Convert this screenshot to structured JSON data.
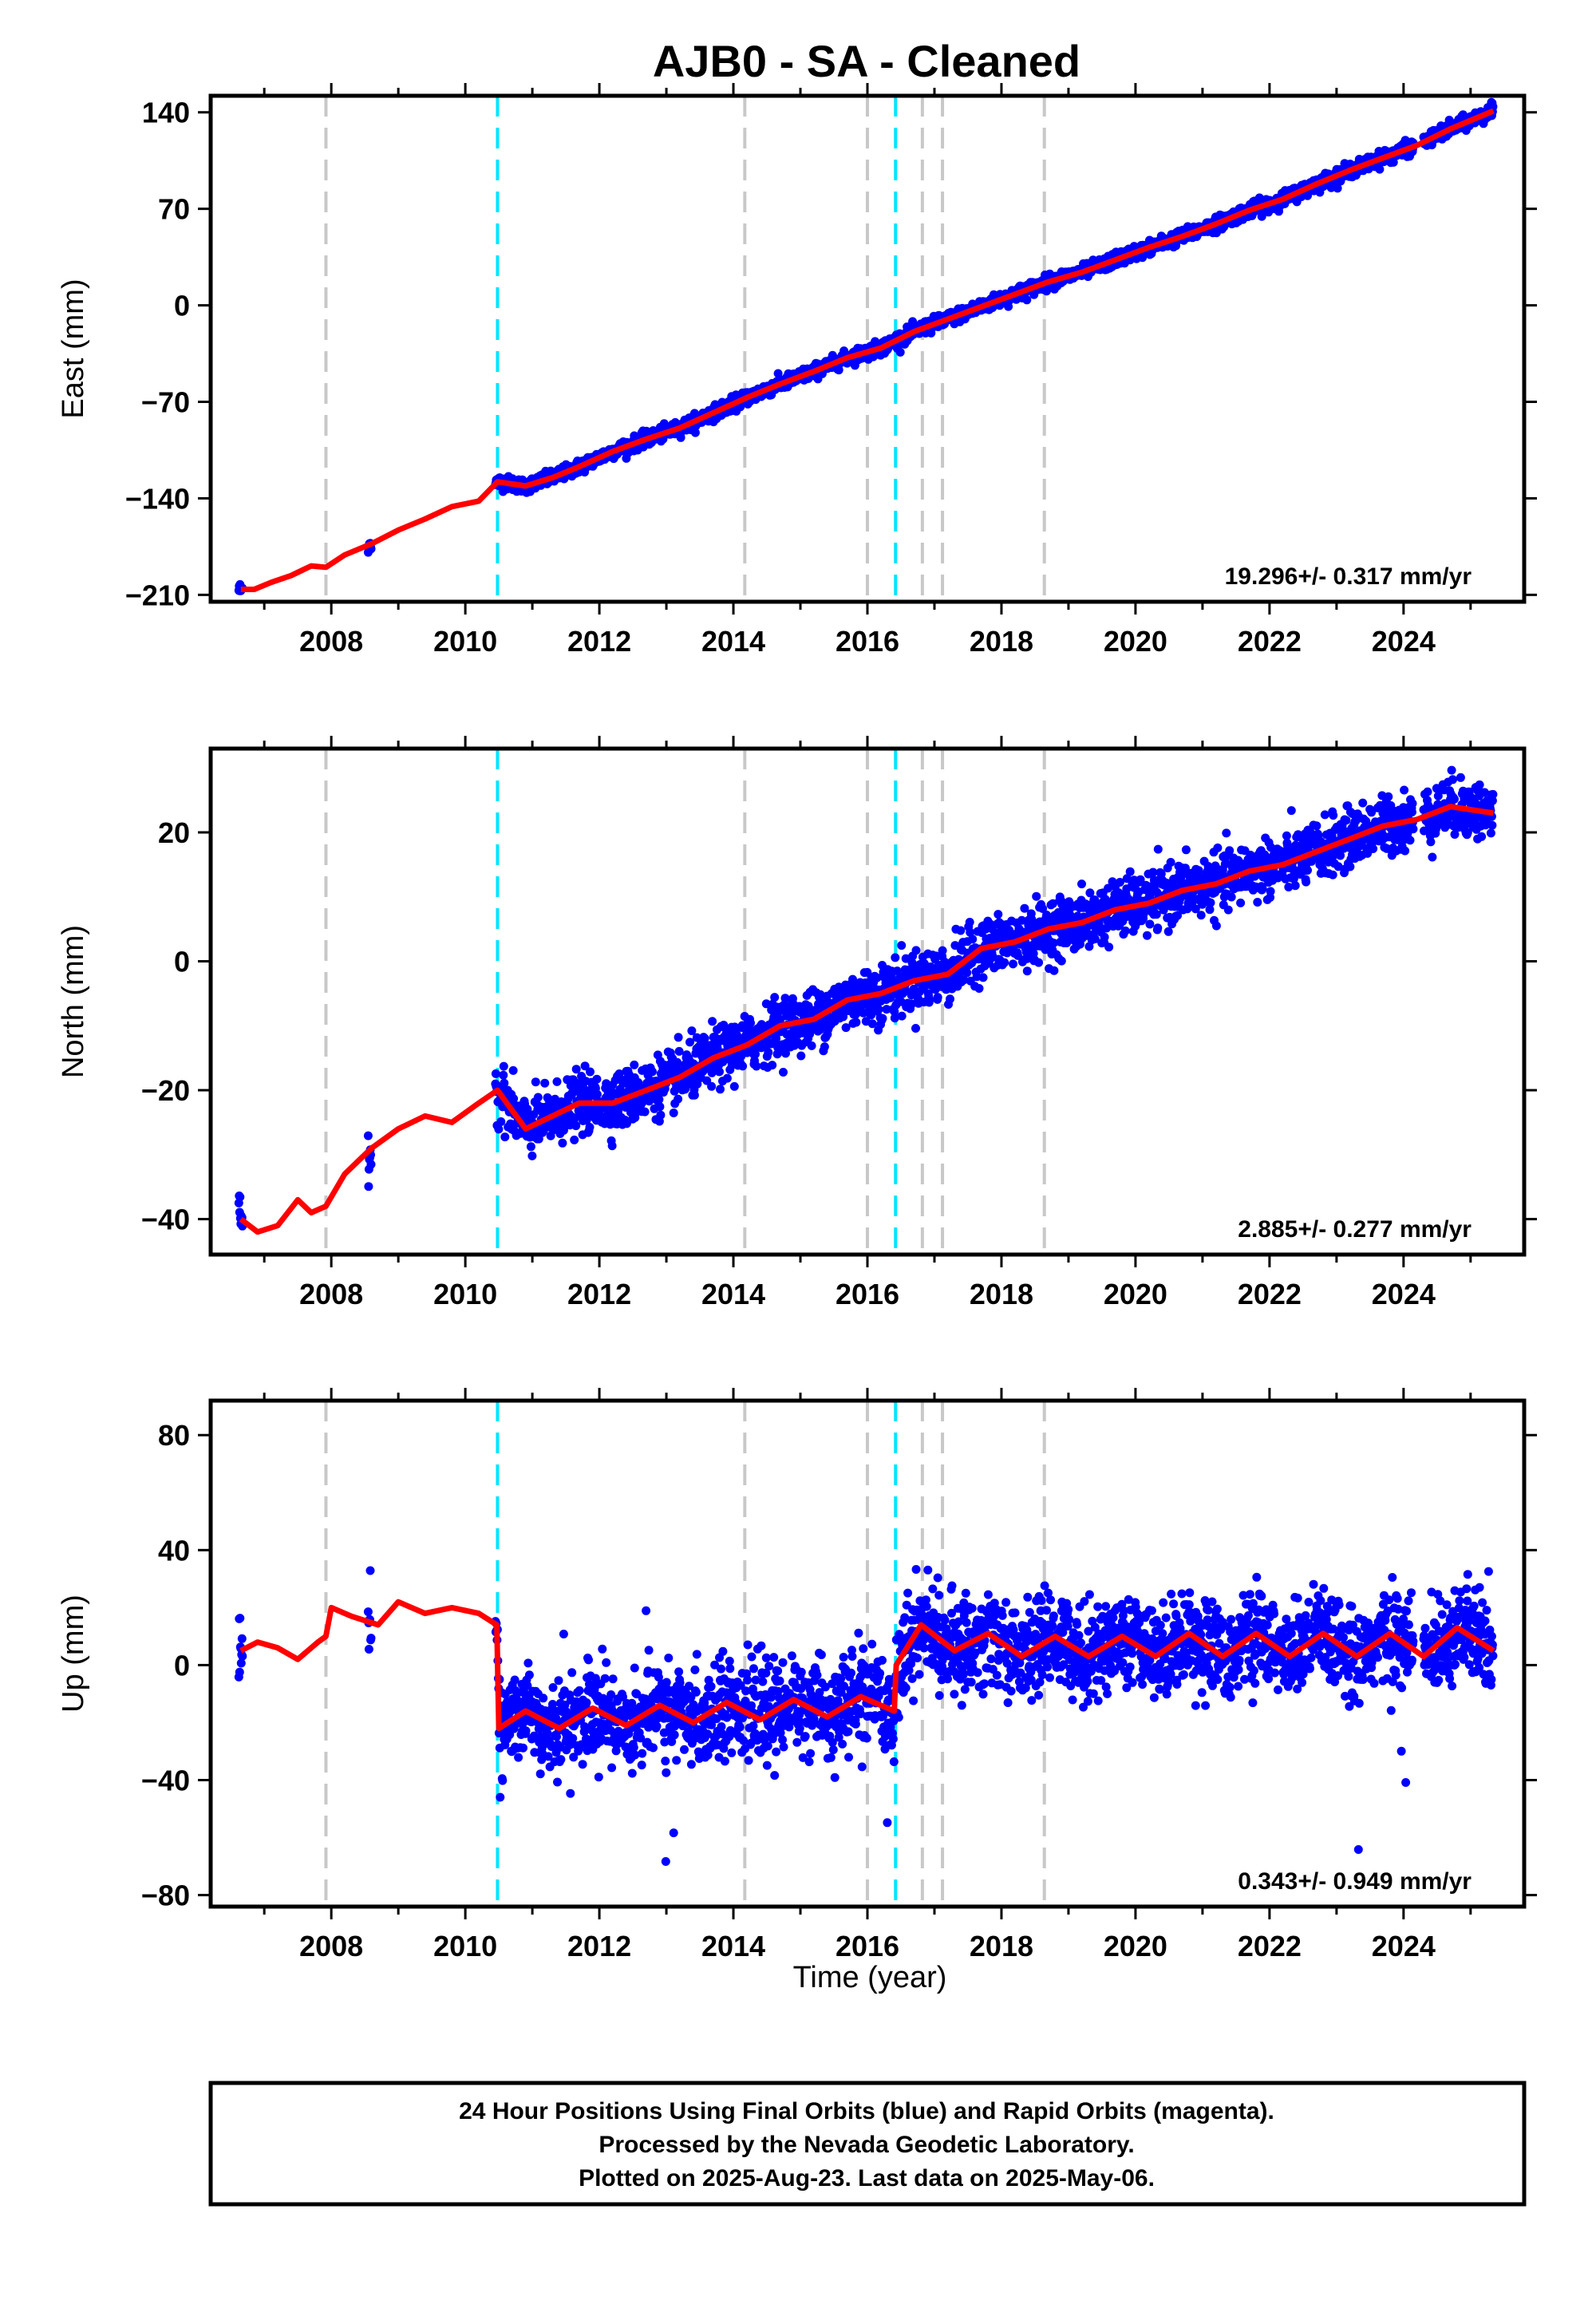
{
  "title": "AJB0  - SA - Cleaned",
  "xlabel": "Time (year)",
  "footer": {
    "line1": "24 Hour Positions Using Final Orbits (blue) and Rapid Orbits (magenta).",
    "line2": "Processed by the Nevada Geodetic Laboratory.",
    "line3": "Plotted on 2025-Aug-23. Last data on 2025-May-06."
  },
  "colors": {
    "data_points": "#0000ff",
    "model_line": "#ff0000",
    "equipment_change_lines": "#c8c8c8",
    "earthquake_lines": "#00e5ff"
  },
  "chart_data": [
    {
      "type": "scatter",
      "component": "East",
      "ylabel": "East (mm)",
      "rate_label": "19.296+/- 0.317 mm/yr",
      "xlim": [
        2006.2,
        2025.8
      ],
      "ylim": [
        -215,
        152
      ],
      "yticks": [
        -210,
        -140,
        -70,
        0,
        70,
        140
      ],
      "xticks": [
        2008,
        2010,
        2012,
        2014,
        2016,
        2018,
        2020,
        2022,
        2024
      ],
      "gray_dashed_lines": [
        2007.92,
        2014.17,
        2016.0,
        2016.82,
        2017.12,
        2018.64
      ],
      "cyan_dashed_lines": [
        2010.48,
        2016.42
      ],
      "model_line": {
        "x": [
          2006.65,
          2006.85,
          2007.1,
          2007.4,
          2007.7,
          2007.92,
          2008.2,
          2008.6,
          2009.0,
          2009.4,
          2009.8,
          2010.2,
          2010.48,
          2010.9,
          2011.3,
          2011.7,
          2012.2,
          2012.7,
          2013.2,
          2013.7,
          2014.2,
          2014.7,
          2015.2,
          2015.7,
          2016.2,
          2016.7,
          2017.2,
          2017.7,
          2018.2,
          2018.7,
          2019.2,
          2019.7,
          2020.2,
          2020.7,
          2021.2,
          2021.7,
          2022.2,
          2022.7,
          2023.2,
          2023.7,
          2024.2,
          2024.7,
          2025.34
        ],
        "y": [
          -206,
          -206,
          -201,
          -196,
          -189,
          -190,
          -181,
          -173,
          -163,
          -155,
          -146,
          -142,
          -128,
          -131,
          -125,
          -117,
          -106,
          -97,
          -89,
          -78,
          -67,
          -57,
          -48,
          -38,
          -31,
          -19,
          -10,
          -1,
          8,
          17,
          24,
          33,
          42,
          50,
          59,
          69,
          77,
          88,
          98,
          107,
          116,
          128,
          141
        ]
      },
      "series_note": "daily positions scatter around the model line"
    },
    {
      "type": "scatter",
      "component": "North",
      "ylabel": "North (mm)",
      "rate_label": "2.885+/- 0.277 mm/yr",
      "xlim": [
        2006.2,
        2025.8
      ],
      "ylim": [
        -45.5,
        33
      ],
      "yticks": [
        -40,
        -20,
        0,
        20
      ],
      "xticks": [
        2008,
        2010,
        2012,
        2014,
        2016,
        2018,
        2020,
        2022,
        2024
      ],
      "gray_dashed_lines": [
        2007.92,
        2014.17,
        2016.0,
        2016.82,
        2017.12,
        2018.64
      ],
      "cyan_dashed_lines": [
        2010.48,
        2016.42
      ],
      "model_line": {
        "x": [
          2006.65,
          2006.9,
          2007.2,
          2007.5,
          2007.7,
          2007.92,
          2008.2,
          2008.6,
          2009.0,
          2009.4,
          2009.8,
          2010.2,
          2010.48,
          2010.9,
          2011.3,
          2011.7,
          2012.2,
          2012.7,
          2013.2,
          2013.7,
          2014.2,
          2014.7,
          2015.2,
          2015.7,
          2016.2,
          2016.7,
          2017.2,
          2017.7,
          2018.2,
          2018.7,
          2019.2,
          2019.7,
          2020.2,
          2020.7,
          2021.2,
          2021.7,
          2022.2,
          2022.7,
          2023.2,
          2023.7,
          2024.2,
          2024.7,
          2025.34
        ],
        "y": [
          -40,
          -42,
          -41,
          -37,
          -39,
          -38,
          -33,
          -29,
          -26,
          -24,
          -25,
          -22,
          -20,
          -26,
          -24,
          -22,
          -22,
          -20,
          -18,
          -15,
          -13,
          -10,
          -9,
          -6,
          -5,
          -3,
          -2,
          2,
          3,
          5,
          6,
          8,
          9,
          11,
          12,
          14,
          15,
          17,
          19,
          21,
          22,
          24,
          23
        ]
      },
      "series_note": "daily positions scatter around the model line"
    },
    {
      "type": "scatter",
      "component": "Up",
      "ylabel": "Up (mm)",
      "rate_label": "0.343+/- 0.949 mm/yr",
      "xlim": [
        2006.2,
        2025.8
      ],
      "ylim": [
        -84,
        92
      ],
      "yticks": [
        -80,
        -40,
        0,
        40,
        80
      ],
      "xticks": [
        2008,
        2010,
        2012,
        2014,
        2016,
        2018,
        2020,
        2022,
        2024
      ],
      "gray_dashed_lines": [
        2007.92,
        2014.17,
        2016.0,
        2016.82,
        2017.12,
        2018.64
      ],
      "cyan_dashed_lines": [
        2010.48,
        2016.42
      ],
      "model_line": {
        "x": [
          2006.65,
          2006.9,
          2007.2,
          2007.5,
          2007.8,
          2007.92,
          2008.0,
          2008.3,
          2008.7,
          2009.0,
          2009.4,
          2009.8,
          2010.2,
          2010.47,
          2010.5,
          2010.9,
          2011.4,
          2011.9,
          2012.4,
          2012.9,
          2013.4,
          2013.9,
          2014.4,
          2014.9,
          2015.4,
          2015.9,
          2016.4,
          2016.43,
          2016.8,
          2017.3,
          2017.8,
          2018.3,
          2018.8,
          2019.3,
          2019.8,
          2020.3,
          2020.8,
          2021.3,
          2021.8,
          2022.3,
          2022.8,
          2023.3,
          2023.8,
          2024.3,
          2024.8,
          2025.34
        ],
        "y": [
          5,
          8,
          6,
          2,
          8,
          10,
          20,
          17,
          14,
          22,
          18,
          20,
          18,
          14,
          -22,
          -16,
          -22,
          -15,
          -21,
          -14,
          -20,
          -13,
          -19,
          -12,
          -18,
          -11,
          -16,
          0,
          14,
          5,
          11,
          3,
          10,
          3,
          10,
          3,
          11,
          3,
          11,
          3,
          11,
          3,
          11,
          3,
          13,
          5
        ]
      },
      "series_note": "daily positions scatter around the model line"
    }
  ]
}
